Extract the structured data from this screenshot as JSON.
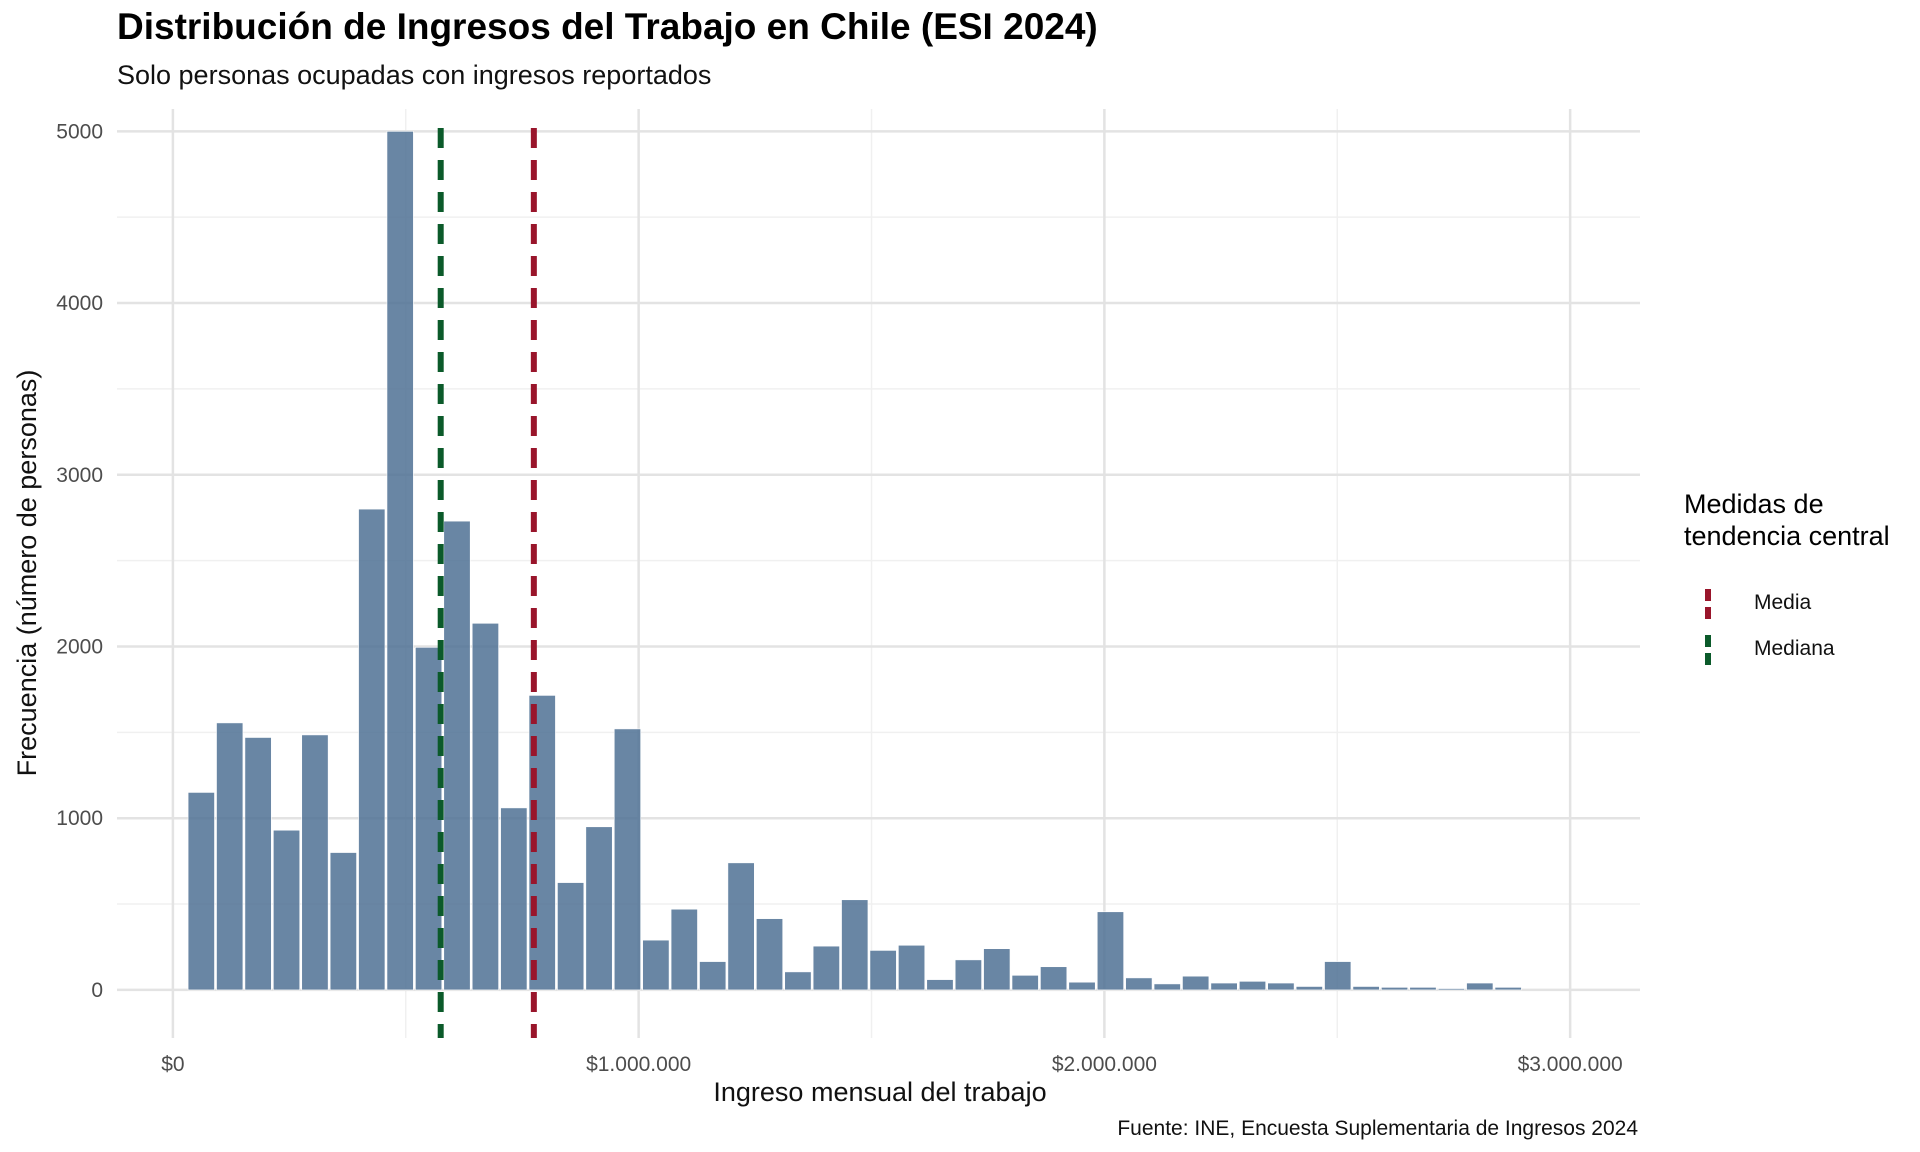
{
  "title": "Distribución de Ingresos del Trabajo en Chile (ESI 2024)",
  "subtitle": "Solo personas ocupadas con ingresos reportados",
  "caption": "Fuente: INE, Encuesta Suplementaria de Ingresos 2024",
  "legend": {
    "title_line1": "Medidas de",
    "title_line2": "tendencia central",
    "items": [
      {
        "label": "Media",
        "color": "#99152b"
      },
      {
        "label": "Mediana",
        "color": "#0b5a2a"
      }
    ]
  },
  "chart_data": {
    "type": "bar",
    "subtype": "histogram",
    "xlabel": "Ingreso mensual del trabajo",
    "ylabel": "Frecuencia (número de personas)",
    "xlim": [
      -120000,
      3150000
    ],
    "ylim": [
      -280,
      5130
    ],
    "x_ticks": [
      {
        "value": 0,
        "label": "$0"
      },
      {
        "value": 1000000,
        "label": "$1.000.000"
      },
      {
        "value": 2000000,
        "label": "$2.000.000"
      },
      {
        "value": 3000000,
        "label": "$3.000.000"
      }
    ],
    "y_ticks": [
      {
        "value": 0,
        "label": "0"
      },
      {
        "value": 1000,
        "label": "1000"
      },
      {
        "value": 2000,
        "label": "2000"
      },
      {
        "value": 3000,
        "label": "3000"
      },
      {
        "value": 4000,
        "label": "4000"
      },
      {
        "value": 5000,
        "label": "5000"
      }
    ],
    "bin_width": 61000,
    "bar_color": "#4f7194",
    "bins": [
      {
        "x": 61000,
        "y": 1150
      },
      {
        "x": 122000,
        "y": 1555
      },
      {
        "x": 183000,
        "y": 1470
      },
      {
        "x": 244000,
        "y": 930
      },
      {
        "x": 305000,
        "y": 1485
      },
      {
        "x": 366000,
        "y": 800
      },
      {
        "x": 427000,
        "y": 2800
      },
      {
        "x": 488000,
        "y": 5000
      },
      {
        "x": 549000,
        "y": 1995
      },
      {
        "x": 610000,
        "y": 2730
      },
      {
        "x": 671000,
        "y": 2135
      },
      {
        "x": 732000,
        "y": 1060
      },
      {
        "x": 793000,
        "y": 1715
      },
      {
        "x": 854000,
        "y": 625
      },
      {
        "x": 915000,
        "y": 950
      },
      {
        "x": 976000,
        "y": 1520
      },
      {
        "x": 1037000,
        "y": 290
      },
      {
        "x": 1098000,
        "y": 470
      },
      {
        "x": 1159000,
        "y": 165
      },
      {
        "x": 1220000,
        "y": 740
      },
      {
        "x": 1281000,
        "y": 415
      },
      {
        "x": 1342000,
        "y": 105
      },
      {
        "x": 1403000,
        "y": 255
      },
      {
        "x": 1464000,
        "y": 525
      },
      {
        "x": 1525000,
        "y": 230
      },
      {
        "x": 1586000,
        "y": 260
      },
      {
        "x": 1647000,
        "y": 60
      },
      {
        "x": 1708000,
        "y": 175
      },
      {
        "x": 1769000,
        "y": 240
      },
      {
        "x": 1830000,
        "y": 85
      },
      {
        "x": 1891000,
        "y": 135
      },
      {
        "x": 1952000,
        "y": 45
      },
      {
        "x": 2013000,
        "y": 455
      },
      {
        "x": 2074000,
        "y": 70
      },
      {
        "x": 2135000,
        "y": 35
      },
      {
        "x": 2196000,
        "y": 80
      },
      {
        "x": 2257000,
        "y": 40
      },
      {
        "x": 2318000,
        "y": 50
      },
      {
        "x": 2379000,
        "y": 40
      },
      {
        "x": 2440000,
        "y": 20
      },
      {
        "x": 2501000,
        "y": 165
      },
      {
        "x": 2562000,
        "y": 20
      },
      {
        "x": 2623000,
        "y": 15
      },
      {
        "x": 2684000,
        "y": 15
      },
      {
        "x": 2745000,
        "y": 8
      },
      {
        "x": 2806000,
        "y": 40
      },
      {
        "x": 2867000,
        "y": 15
      }
    ],
    "reference_lines": [
      {
        "name": "Media",
        "x": 775000,
        "color": "#99152b",
        "style": "dashed"
      },
      {
        "name": "Mediana",
        "x": 575000,
        "color": "#0b5a2a",
        "style": "dashed"
      }
    ],
    "grid": true,
    "legend_position": "right"
  }
}
